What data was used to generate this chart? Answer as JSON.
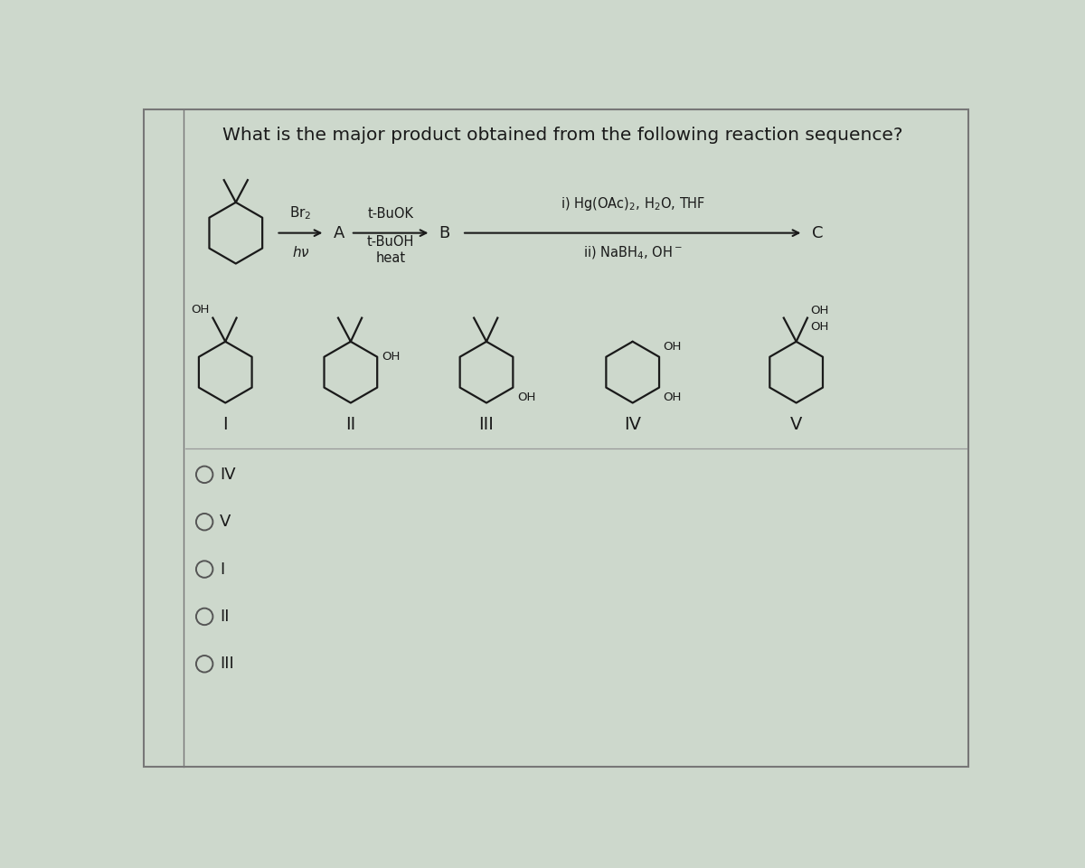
{
  "title": "What is the major product obtained from the following reaction sequence?",
  "bg_color": "#cdd8cc",
  "border_color": "#777777",
  "text_color": "#1a1a1a",
  "line_color": "#1a1a1a",
  "figsize": [
    12.0,
    9.6
  ],
  "dpi": 100,
  "answer_choices": [
    "IV",
    "V",
    "I",
    "II",
    "III"
  ]
}
